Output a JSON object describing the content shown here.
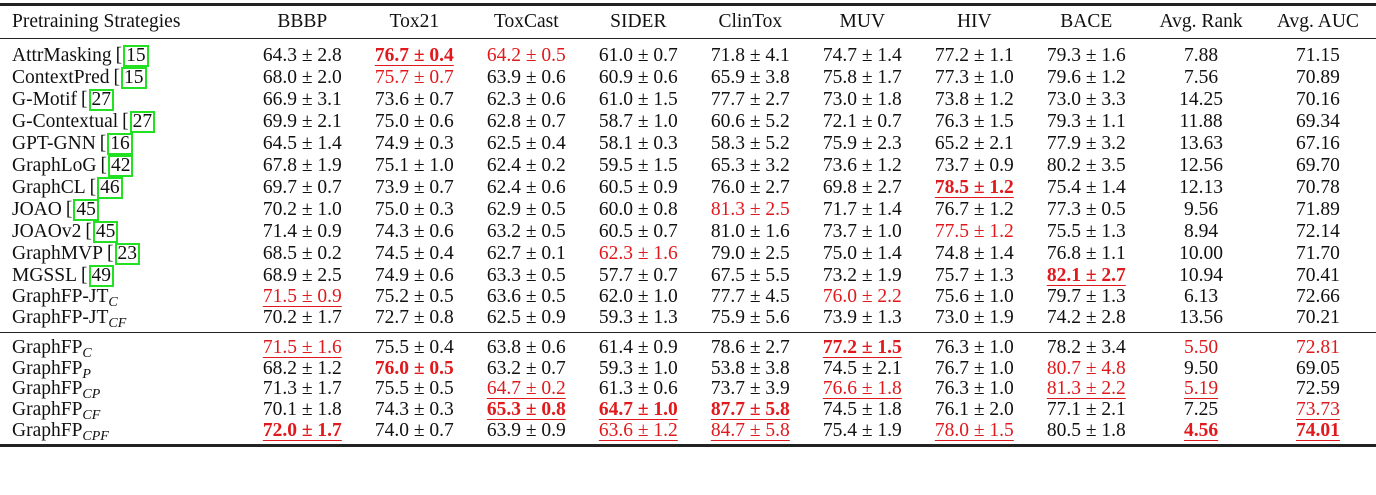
{
  "table": {
    "columns": [
      "Pretraining Strategies",
      "BBBP",
      "Tox21",
      "ToxCast",
      "SIDER",
      "ClinTox",
      "MUV",
      "HIV",
      "BACE",
      "Avg. Rank",
      "Avg. AUC"
    ],
    "baselines": [
      {
        "name": "AttrMasking",
        "cite": "15",
        "sub": "",
        "cells": [
          {
            "v": "64.3 ± 2.8",
            "s": ""
          },
          {
            "v": "76.7 ± 0.4",
            "s": "best"
          },
          {
            "v": "64.2 ± 0.5",
            "s": "third"
          },
          {
            "v": "61.0 ± 0.7",
            "s": ""
          },
          {
            "v": "71.8 ± 4.1",
            "s": ""
          },
          {
            "v": "74.7 ± 1.4",
            "s": ""
          },
          {
            "v": "77.2 ± 1.1",
            "s": ""
          },
          {
            "v": "79.3 ± 1.6",
            "s": ""
          },
          {
            "v": "7.88",
            "s": ""
          },
          {
            "v": "71.15",
            "s": ""
          }
        ]
      },
      {
        "name": "ContextPred",
        "cite": "15",
        "sub": "",
        "cells": [
          {
            "v": "68.0 ± 2.0",
            "s": ""
          },
          {
            "v": "75.7 ± 0.7",
            "s": "third"
          },
          {
            "v": "63.9 ± 0.6",
            "s": ""
          },
          {
            "v": "60.9 ± 0.6",
            "s": ""
          },
          {
            "v": "65.9 ± 3.8",
            "s": ""
          },
          {
            "v": "75.8 ± 1.7",
            "s": ""
          },
          {
            "v": "77.3 ± 1.0",
            "s": ""
          },
          {
            "v": "79.6 ± 1.2",
            "s": ""
          },
          {
            "v": "7.56",
            "s": ""
          },
          {
            "v": "70.89",
            "s": ""
          }
        ]
      },
      {
        "name": "G-Motif",
        "cite": "27",
        "sub": "",
        "cells": [
          {
            "v": "66.9 ± 3.1",
            "s": ""
          },
          {
            "v": "73.6 ± 0.7",
            "s": ""
          },
          {
            "v": "62.3 ± 0.6",
            "s": ""
          },
          {
            "v": "61.0 ± 1.5",
            "s": ""
          },
          {
            "v": "77.7 ± 2.7",
            "s": ""
          },
          {
            "v": "73.0 ± 1.8",
            "s": ""
          },
          {
            "v": "73.8 ± 1.2",
            "s": ""
          },
          {
            "v": "73.0 ± 3.3",
            "s": ""
          },
          {
            "v": "14.25",
            "s": ""
          },
          {
            "v": "70.16",
            "s": ""
          }
        ]
      },
      {
        "name": "G-Contextual",
        "cite": "27",
        "sub": "",
        "cells": [
          {
            "v": "69.9 ± 2.1",
            "s": ""
          },
          {
            "v": "75.0 ± 0.6",
            "s": ""
          },
          {
            "v": "62.8 ± 0.7",
            "s": ""
          },
          {
            "v": "58.7 ± 1.0",
            "s": ""
          },
          {
            "v": "60.6 ± 5.2",
            "s": ""
          },
          {
            "v": "72.1 ± 0.7",
            "s": ""
          },
          {
            "v": "76.3 ± 1.5",
            "s": ""
          },
          {
            "v": "79.3 ± 1.1",
            "s": ""
          },
          {
            "v": "11.88",
            "s": ""
          },
          {
            "v": "69.34",
            "s": ""
          }
        ]
      },
      {
        "name": "GPT-GNN",
        "cite": "16",
        "sub": "",
        "cells": [
          {
            "v": "64.5 ± 1.4",
            "s": ""
          },
          {
            "v": "74.9 ± 0.3",
            "s": ""
          },
          {
            "v": "62.5 ± 0.4",
            "s": ""
          },
          {
            "v": "58.1 ± 0.3",
            "s": ""
          },
          {
            "v": "58.3 ± 5.2",
            "s": ""
          },
          {
            "v": "75.9 ± 2.3",
            "s": ""
          },
          {
            "v": "65.2 ± 2.1",
            "s": ""
          },
          {
            "v": "77.9 ± 3.2",
            "s": ""
          },
          {
            "v": "13.63",
            "s": ""
          },
          {
            "v": "67.16",
            "s": ""
          }
        ]
      },
      {
        "name": "GraphLoG",
        "cite": "42",
        "sub": "",
        "cells": [
          {
            "v": "67.8 ± 1.9",
            "s": ""
          },
          {
            "v": "75.1 ± 1.0",
            "s": ""
          },
          {
            "v": "62.4 ± 0.2",
            "s": ""
          },
          {
            "v": "59.5 ± 1.5",
            "s": ""
          },
          {
            "v": "65.3 ± 3.2",
            "s": ""
          },
          {
            "v": "73.6 ± 1.2",
            "s": ""
          },
          {
            "v": "73.7 ± 0.9",
            "s": ""
          },
          {
            "v": "80.2 ± 3.5",
            "s": ""
          },
          {
            "v": "12.56",
            "s": ""
          },
          {
            "v": "69.70",
            "s": ""
          }
        ]
      },
      {
        "name": "GraphCL",
        "cite": "46",
        "sub": "",
        "cells": [
          {
            "v": "69.7 ± 0.7",
            "s": ""
          },
          {
            "v": "73.9 ± 0.7",
            "s": ""
          },
          {
            "v": "62.4 ± 0.6",
            "s": ""
          },
          {
            "v": "60.5 ± 0.9",
            "s": ""
          },
          {
            "v": "76.0 ± 2.7",
            "s": ""
          },
          {
            "v": "69.8 ± 2.7",
            "s": ""
          },
          {
            "v": "78.5 ± 1.2",
            "s": "best"
          },
          {
            "v": "75.4 ± 1.4",
            "s": ""
          },
          {
            "v": "12.13",
            "s": ""
          },
          {
            "v": "70.78",
            "s": ""
          }
        ]
      },
      {
        "name": "JOAO",
        "cite": "45",
        "sub": "",
        "cells": [
          {
            "v": "70.2 ± 1.0",
            "s": ""
          },
          {
            "v": "75.0 ± 0.3",
            "s": ""
          },
          {
            "v": "62.9 ± 0.5",
            "s": ""
          },
          {
            "v": "60.0 ± 0.8",
            "s": ""
          },
          {
            "v": "81.3 ± 2.5",
            "s": "third"
          },
          {
            "v": "71.7 ± 1.4",
            "s": ""
          },
          {
            "v": "76.7 ± 1.2",
            "s": ""
          },
          {
            "v": "77.3 ± 0.5",
            "s": ""
          },
          {
            "v": "9.56",
            "s": ""
          },
          {
            "v": "71.89",
            "s": ""
          }
        ]
      },
      {
        "name": "JOAOv2",
        "cite": "45",
        "sub": "",
        "cells": [
          {
            "v": "71.4 ± 0.9",
            "s": ""
          },
          {
            "v": "74.3 ± 0.6",
            "s": ""
          },
          {
            "v": "63.2 ± 0.5",
            "s": ""
          },
          {
            "v": "60.5 ± 0.7",
            "s": ""
          },
          {
            "v": "81.0 ± 1.6",
            "s": ""
          },
          {
            "v": "73.7 ± 1.0",
            "s": ""
          },
          {
            "v": "77.5 ± 1.2",
            "s": "third"
          },
          {
            "v": "75.5 ± 1.3",
            "s": ""
          },
          {
            "v": "8.94",
            "s": ""
          },
          {
            "v": "72.14",
            "s": ""
          }
        ]
      },
      {
        "name": "GraphMVP",
        "cite": "23",
        "sub": "",
        "cells": [
          {
            "v": "68.5 ± 0.2",
            "s": ""
          },
          {
            "v": "74.5 ± 0.4",
            "s": ""
          },
          {
            "v": "62.7 ± 0.1",
            "s": ""
          },
          {
            "v": "62.3 ± 1.6",
            "s": "third"
          },
          {
            "v": "79.0 ± 2.5",
            "s": ""
          },
          {
            "v": "75.0 ± 1.4",
            "s": ""
          },
          {
            "v": "74.8 ± 1.4",
            "s": ""
          },
          {
            "v": "76.8 ± 1.1",
            "s": ""
          },
          {
            "v": "10.00",
            "s": ""
          },
          {
            "v": "71.70",
            "s": ""
          }
        ]
      },
      {
        "name": "MGSSL",
        "cite": "49",
        "sub": "",
        "cells": [
          {
            "v": "68.9 ± 2.5",
            "s": ""
          },
          {
            "v": "74.9 ± 0.6",
            "s": ""
          },
          {
            "v": "63.3 ± 0.5",
            "s": ""
          },
          {
            "v": "57.7 ± 0.7",
            "s": ""
          },
          {
            "v": "67.5 ± 5.5",
            "s": ""
          },
          {
            "v": "73.2 ± 1.9",
            "s": ""
          },
          {
            "v": "75.7 ± 1.3",
            "s": ""
          },
          {
            "v": "82.1 ± 2.7",
            "s": "best"
          },
          {
            "v": "10.94",
            "s": ""
          },
          {
            "v": "70.41",
            "s": ""
          }
        ]
      },
      {
        "name": "GraphFP-JT",
        "cite": "",
        "sub": "C",
        "cells": [
          {
            "v": "71.5 ± 0.9",
            "s": "second"
          },
          {
            "v": "75.2 ± 0.5",
            "s": ""
          },
          {
            "v": "63.6 ± 0.5",
            "s": ""
          },
          {
            "v": "62.0 ± 1.0",
            "s": ""
          },
          {
            "v": "77.7 ± 4.5",
            "s": ""
          },
          {
            "v": "76.0 ± 2.2",
            "s": "third"
          },
          {
            "v": "75.6 ± 1.0",
            "s": ""
          },
          {
            "v": "79.7 ± 1.3",
            "s": ""
          },
          {
            "v": "6.13",
            "s": ""
          },
          {
            "v": "72.66",
            "s": ""
          }
        ]
      },
      {
        "name": "GraphFP-JT",
        "cite": "",
        "sub": "CF",
        "cells": [
          {
            "v": "70.2 ± 1.7",
            "s": ""
          },
          {
            "v": "72.7 ± 0.8",
            "s": ""
          },
          {
            "v": "62.5 ± 0.9",
            "s": ""
          },
          {
            "v": "59.3 ± 1.3",
            "s": ""
          },
          {
            "v": "75.9 ± 5.6",
            "s": ""
          },
          {
            "v": "73.9 ± 1.3",
            "s": ""
          },
          {
            "v": "73.0 ± 1.9",
            "s": ""
          },
          {
            "v": "74.2 ± 2.8",
            "s": ""
          },
          {
            "v": "13.56",
            "s": ""
          },
          {
            "v": "70.21",
            "s": ""
          }
        ]
      }
    ],
    "ours": [
      {
        "name": "GraphFP",
        "cite": "",
        "sub": "C",
        "cells": [
          {
            "v": "71.5 ± 1.6",
            "s": "second"
          },
          {
            "v": "75.5 ± 0.4",
            "s": ""
          },
          {
            "v": "63.8 ± 0.6",
            "s": ""
          },
          {
            "v": "61.4 ± 0.9",
            "s": ""
          },
          {
            "v": "78.6 ± 2.7",
            "s": ""
          },
          {
            "v": "77.2 ± 1.5",
            "s": "best"
          },
          {
            "v": "76.3 ± 1.0",
            "s": ""
          },
          {
            "v": "78.2 ± 3.4",
            "s": ""
          },
          {
            "v": "5.50",
            "s": "third"
          },
          {
            "v": "72.81",
            "s": "third"
          }
        ]
      },
      {
        "name": "GraphFP",
        "cite": "",
        "sub": "P",
        "cells": [
          {
            "v": "68.2 ± 1.2",
            "s": ""
          },
          {
            "v": "76.0 ± 0.5",
            "s": "bold-red"
          },
          {
            "v": "63.2 ± 0.7",
            "s": ""
          },
          {
            "v": "59.3 ± 1.0",
            "s": ""
          },
          {
            "v": "53.8 ± 3.8",
            "s": ""
          },
          {
            "v": "74.5 ± 2.1",
            "s": ""
          },
          {
            "v": "76.7 ± 1.0",
            "s": ""
          },
          {
            "v": "80.7 ± 4.8",
            "s": "third"
          },
          {
            "v": "9.50",
            "s": ""
          },
          {
            "v": "69.05",
            "s": ""
          }
        ]
      },
      {
        "name": "GraphFP",
        "cite": "",
        "sub": "CP",
        "cells": [
          {
            "v": "71.3 ± 1.7",
            "s": ""
          },
          {
            "v": "75.5 ± 0.5",
            "s": ""
          },
          {
            "v": "64.7 ± 0.2",
            "s": "second"
          },
          {
            "v": "61.3 ± 0.6",
            "s": ""
          },
          {
            "v": "73.7 ± 3.9",
            "s": ""
          },
          {
            "v": "76.6 ± 1.8",
            "s": "second"
          },
          {
            "v": "76.3 ± 1.0",
            "s": ""
          },
          {
            "v": "81.3 ± 2.2",
            "s": "second"
          },
          {
            "v": "5.19",
            "s": "second"
          },
          {
            "v": "72.59",
            "s": ""
          }
        ]
      },
      {
        "name": "GraphFP",
        "cite": "",
        "sub": "CF",
        "cells": [
          {
            "v": "70.1 ± 1.8",
            "s": ""
          },
          {
            "v": "74.3 ± 0.3",
            "s": ""
          },
          {
            "v": "65.3 ± 0.8",
            "s": "best"
          },
          {
            "v": "64.7 ± 1.0",
            "s": "best"
          },
          {
            "v": "87.7 ± 5.8",
            "s": "best"
          },
          {
            "v": "74.5 ± 1.8",
            "s": ""
          },
          {
            "v": "76.1 ± 2.0",
            "s": ""
          },
          {
            "v": "77.1 ± 2.1",
            "s": ""
          },
          {
            "v": "7.25",
            "s": ""
          },
          {
            "v": "73.73",
            "s": "second"
          }
        ]
      },
      {
        "name": "GraphFP",
        "cite": "",
        "sub": "CPF",
        "cells": [
          {
            "v": "72.0 ± 1.7",
            "s": "best"
          },
          {
            "v": "74.0 ± 0.7",
            "s": ""
          },
          {
            "v": "63.9 ± 0.9",
            "s": ""
          },
          {
            "v": "63.6 ± 1.2",
            "s": "second"
          },
          {
            "v": "84.7 ± 5.8",
            "s": "second"
          },
          {
            "v": "75.4 ± 1.9",
            "s": ""
          },
          {
            "v": "78.0 ± 1.5",
            "s": "second"
          },
          {
            "v": "80.5 ± 1.8",
            "s": ""
          },
          {
            "v": "4.56",
            "s": "best"
          },
          {
            "v": "74.01",
            "s": "best"
          }
        ]
      }
    ]
  },
  "styles": {
    "highlight_color": "#e0191c",
    "citation_box_color": "#22e022",
    "rule_color": "#222222"
  }
}
